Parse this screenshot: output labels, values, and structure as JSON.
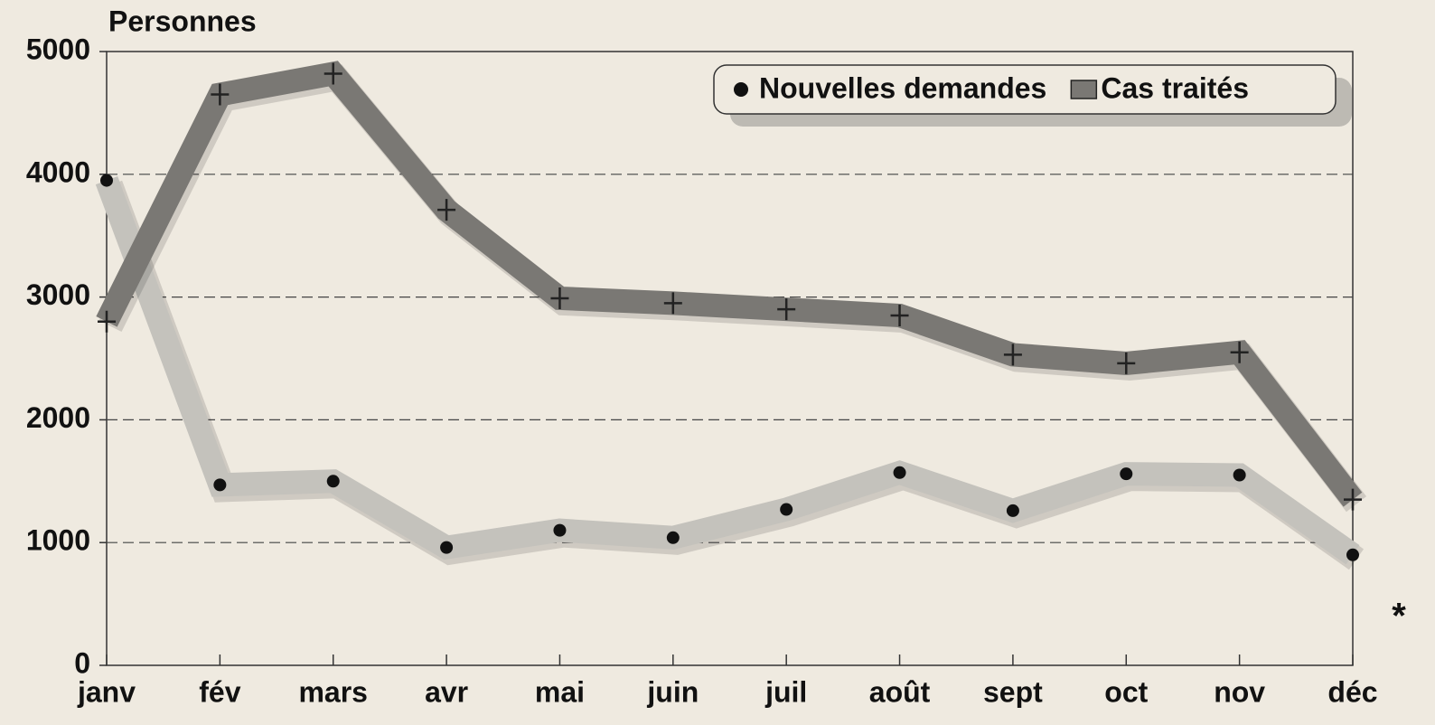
{
  "chart_data": {
    "type": "line",
    "y_label": "Personnes",
    "annotation": "*",
    "categories": [
      "janv",
      "fév",
      "mars",
      "avr",
      "mai",
      "juin",
      "juil",
      "août",
      "sept",
      "oct",
      "nov",
      "déc"
    ],
    "series": [
      {
        "name": "Nouvelles demandes",
        "color": "#c4c2bc",
        "marker": "circle",
        "values": [
          3950,
          1470,
          1500,
          960,
          1100,
          1040,
          1270,
          1570,
          1260,
          1560,
          1550,
          900
        ]
      },
      {
        "name": "Cas traités",
        "color": "#7a7874",
        "marker": "cross",
        "values": [
          2800,
          4650,
          4820,
          3710,
          2990,
          2950,
          2900,
          2850,
          2530,
          2460,
          2550,
          1350
        ]
      }
    ],
    "ylim": [
      0,
      5000
    ],
    "yticks": [
      0,
      1000,
      2000,
      3000,
      4000,
      5000
    ],
    "grid": true,
    "legend": "top-right"
  }
}
